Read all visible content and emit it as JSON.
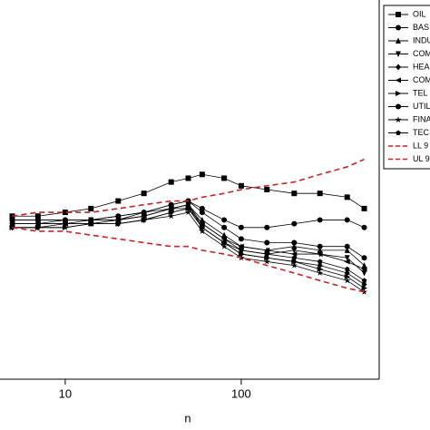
{
  "chart_data": {
    "type": "line",
    "x_label": "n",
    "x": [
      5,
      7,
      10,
      14,
      20,
      28,
      40,
      50,
      60,
      80,
      100,
      140,
      200,
      280,
      400,
      500
    ],
    "xlim": [
      4.26,
      608
    ],
    "xticks": [
      10,
      100
    ],
    "xscale": "log",
    "ylim": [
      0,
      1
    ],
    "series": [
      {
        "name": "OIL",
        "color": "#000000",
        "marker": "square",
        "values": [
          0.43,
          0.43,
          0.44,
          0.45,
          0.47,
          0.49,
          0.52,
          0.53,
          0.54,
          0.53,
          0.51,
          0.5,
          0.49,
          0.49,
          0.48,
          0.45
        ]
      },
      {
        "name": "BAS",
        "color": "#000000",
        "marker": "circle",
        "values": [
          0.42,
          0.42,
          0.42,
          0.42,
          0.43,
          0.44,
          0.46,
          0.47,
          0.44,
          0.4,
          0.37,
          0.36,
          0.36,
          0.35,
          0.35,
          0.32
        ]
      },
      {
        "name": "INDU",
        "color": "#000000",
        "marker": "triangle-up",
        "values": [
          0.41,
          0.41,
          0.42,
          0.42,
          0.42,
          0.44,
          0.45,
          0.46,
          0.42,
          0.38,
          0.35,
          0.34,
          0.35,
          0.34,
          0.34,
          0.3
        ]
      },
      {
        "name": "COM",
        "color": "#000000",
        "marker": "triangle-down",
        "values": [
          0.41,
          0.41,
          0.41,
          0.42,
          0.42,
          0.43,
          0.45,
          0.46,
          0.41,
          0.37,
          0.34,
          0.33,
          0.34,
          0.33,
          0.32,
          0.28
        ]
      },
      {
        "name": "HEA",
        "color": "#000000",
        "marker": "diamond",
        "values": [
          0.4,
          0.4,
          0.41,
          0.41,
          0.41,
          0.42,
          0.44,
          0.45,
          0.4,
          0.36,
          0.33,
          0.32,
          0.31,
          0.3,
          0.28,
          0.25
        ]
      },
      {
        "name": "COM",
        "color": "#000000",
        "marker": "triangle-left",
        "values": [
          0.41,
          0.41,
          0.41,
          0.41,
          0.42,
          0.43,
          0.45,
          0.45,
          0.41,
          0.37,
          0.35,
          0.34,
          0.33,
          0.33,
          0.31,
          0.29
        ]
      },
      {
        "name": "TEL",
        "color": "#000000",
        "marker": "triangle-right",
        "values": [
          0.4,
          0.4,
          0.4,
          0.41,
          0.41,
          0.42,
          0.44,
          0.45,
          0.4,
          0.36,
          0.33,
          0.32,
          0.31,
          0.29,
          0.27,
          0.24
        ]
      },
      {
        "name": "UTIL",
        "color": "#000000",
        "marker": "circle",
        "values": [
          0.42,
          0.42,
          0.42,
          0.42,
          0.43,
          0.44,
          0.46,
          0.47,
          0.45,
          0.42,
          0.4,
          0.4,
          0.41,
          0.42,
          0.42,
          0.4
        ]
      },
      {
        "name": "FINA",
        "color": "#000000",
        "marker": "star",
        "values": [
          0.4,
          0.4,
          0.4,
          0.41,
          0.41,
          0.42,
          0.43,
          0.44,
          0.39,
          0.35,
          0.32,
          0.31,
          0.3,
          0.28,
          0.26,
          0.23
        ]
      },
      {
        "name": "TEC",
        "color": "#000000",
        "marker": "pentagon",
        "values": [
          0.41,
          0.41,
          0.41,
          0.41,
          0.42,
          0.43,
          0.45,
          0.46,
          0.4,
          0.36,
          0.34,
          0.33,
          0.32,
          0.31,
          0.29,
          0.26
        ]
      },
      {
        "name": "LL 9",
        "color": "#cc2222",
        "dash": true,
        "values": [
          0.4,
          0.39,
          0.39,
          0.38,
          0.37,
          0.36,
          0.35,
          0.35,
          0.34,
          0.33,
          0.32,
          0.3,
          0.28,
          0.26,
          0.24,
          0.23
        ]
      },
      {
        "name": "UL 9",
        "color": "#cc2222",
        "dash": true,
        "values": [
          0.43,
          0.44,
          0.44,
          0.44,
          0.45,
          0.46,
          0.47,
          0.47,
          0.48,
          0.49,
          0.5,
          0.51,
          0.52,
          0.54,
          0.56,
          0.58
        ]
      }
    ]
  }
}
